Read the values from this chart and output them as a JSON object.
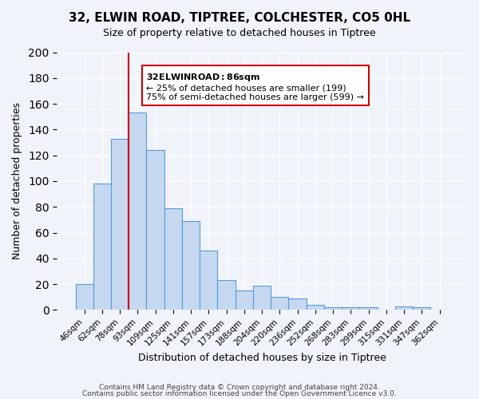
{
  "title": "32, ELWIN ROAD, TIPTREE, COLCHESTER, CO5 0HL",
  "subtitle": "Size of property relative to detached houses in Tiptree",
  "xlabel": "Distribution of detached houses by size in Tiptree",
  "ylabel": "Number of detached properties",
  "bar_labels": [
    "46sqm",
    "62sqm",
    "78sqm",
    "93sqm",
    "109sqm",
    "125sqm",
    "141sqm",
    "157sqm",
    "173sqm",
    "188sqm",
    "204sqm",
    "220sqm",
    "236sqm",
    "252sqm",
    "268sqm",
    "283sqm",
    "299sqm",
    "315sqm",
    "331sqm",
    "347sqm",
    "362sqm"
  ],
  "bar_values": [
    20,
    98,
    133,
    153,
    124,
    79,
    69,
    46,
    23,
    15,
    19,
    10,
    9,
    4,
    2,
    2,
    2,
    0,
    3,
    2,
    0
  ],
  "bar_color": "#c5d8f0",
  "bar_edge_color": "#5b9bd5",
  "vline_x": 2.0,
  "vline_color": "#cc0000",
  "ylim": [
    0,
    200
  ],
  "yticks": [
    0,
    20,
    40,
    60,
    80,
    100,
    120,
    140,
    160,
    180,
    200
  ],
  "annotation_title": "32 ELWIN ROAD: 86sqm",
  "annotation_line1": "← 25% of detached houses are smaller (199)",
  "annotation_line2": "75% of semi-detached houses are larger (599) →",
  "annotation_box_color": "#ffffff",
  "annotation_box_edge": "#cc0000",
  "footer1": "Contains HM Land Registry data © Crown copyright and database right 2024.",
  "footer2": "Contains public sector information licensed under the Open Government Licence v3.0.",
  "background_color": "#f0f4fa",
  "grid_color": "#ffffff"
}
